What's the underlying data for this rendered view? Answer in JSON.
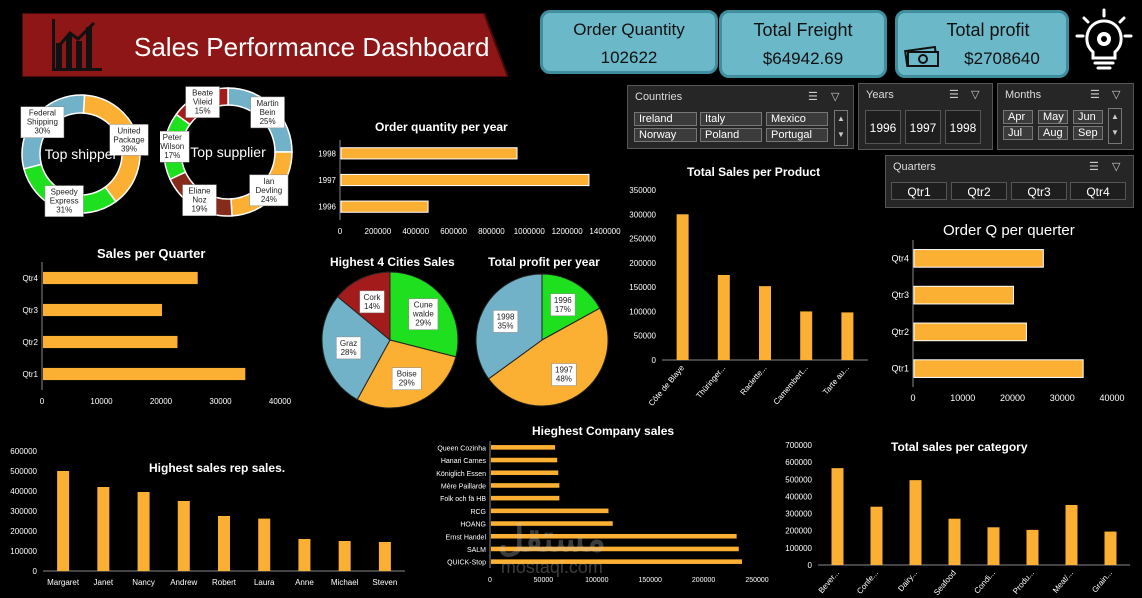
{
  "header": {
    "title": "Sales Performance Dashboard",
    "chart_icon": "bar-chart-icon",
    "idea_icon": "lightbulb-gear-icon"
  },
  "kpis": [
    {
      "title": "Order Quantity",
      "value": "102622"
    },
    {
      "title": "Total Freight",
      "value": "$64942.69"
    },
    {
      "title": "Total profit",
      "value": "$2708640",
      "icon": "money-icon"
    }
  ],
  "slicers": {
    "countries": {
      "title": "Countries",
      "items": [
        "Ireland",
        "Italy",
        "Mexico",
        "Norway",
        "Poland",
        "Portugal"
      ]
    },
    "years": {
      "title": "Years",
      "items": [
        "1996",
        "1997",
        "1998"
      ]
    },
    "months": {
      "title": "Months",
      "items": [
        "Apr",
        "May",
        "Jun",
        "Jul",
        "Aug",
        "Sep"
      ]
    },
    "quarters": {
      "title": "Quarters",
      "items": [
        "Qtr1",
        "Qtr2",
        "Qtr3",
        "Qtr4"
      ]
    }
  },
  "watermark": {
    "arabic": "مستقل",
    "latin": "mostaql.com"
  },
  "chart_data": [
    {
      "id": "shipper",
      "type": "pie",
      "title": "Top shipper",
      "slices": [
        {
          "label": "United Package",
          "pct": 39,
          "color": "#fbb034"
        },
        {
          "label": "Speedy Express",
          "pct": 31,
          "color": "#1fe01f"
        },
        {
          "label": "Federal Shipping",
          "pct": 30,
          "color": "#71b2c9"
        }
      ]
    },
    {
      "id": "supplier",
      "type": "pie",
      "title": "Top supplier",
      "slices": [
        {
          "label": "Martin Bein",
          "pct": 25,
          "color": "#71b2c9"
        },
        {
          "label": "Ian Devling",
          "pct": 24,
          "color": "#fbb034"
        },
        {
          "label": "Eliane Noz",
          "pct": 19,
          "color": "#862b1b"
        },
        {
          "label": "Peter Wilson",
          "pct": 17,
          "color": "#1fe01f"
        },
        {
          "label": "Beate Vileid",
          "pct": 15,
          "color": "#a31b1b"
        }
      ]
    },
    {
      "id": "oqyear",
      "type": "bar",
      "title": "Order quantity per year",
      "categories": [
        "1998",
        "1997",
        "1996"
      ],
      "values": [
        930000,
        1310000,
        460000
      ],
      "xlim": [
        0,
        1400000
      ],
      "ticks": [
        "0",
        "200000",
        "400000",
        "600000",
        "800000",
        "1000000",
        "1200000",
        "1400000"
      ]
    },
    {
      "id": "quarter",
      "type": "bar",
      "title": "Sales per Quarter",
      "categories": [
        "Qtr4",
        "Qtr3",
        "Qtr2",
        "Qtr1"
      ],
      "values": [
        26000,
        20000,
        22600,
        34000
      ],
      "xlim": [
        0,
        40000
      ],
      "ticks": [
        "0",
        "10000",
        "20000",
        "30000",
        "40000"
      ]
    },
    {
      "id": "cities",
      "type": "pie",
      "title": "Highest 4 Cities Sales",
      "slices": [
        {
          "label": "Cune walde",
          "pct": 29,
          "color": "#1fe01f"
        },
        {
          "label": "Boise",
          "pct": 29,
          "color": "#fbb034"
        },
        {
          "label": "Graz",
          "pct": 28,
          "color": "#71b2c9"
        },
        {
          "label": "Cork",
          "pct": 14,
          "color": "#a31b1b"
        }
      ]
    },
    {
      "id": "profit",
      "type": "pie",
      "title": "Total profit per year",
      "slices": [
        {
          "label": "1996",
          "pct": 17,
          "color": "#1fe01f"
        },
        {
          "label": "1997",
          "pct": 48,
          "color": "#fbb034"
        },
        {
          "label": "1998",
          "pct": 35,
          "color": "#71b2c9"
        }
      ]
    },
    {
      "id": "product",
      "type": "bar",
      "title": "Total Sales per Product",
      "categories": [
        "Côte de Blaye",
        "Thüringer...",
        "Raclette...",
        "Camembert...",
        "Tarte au..."
      ],
      "values": [
        300000,
        175000,
        152000,
        100000,
        98000
      ],
      "ylim": [
        0,
        350000
      ],
      "ticks": [
        "0",
        "50000",
        "100000",
        "150000",
        "200000",
        "250000",
        "300000",
        "350000"
      ]
    },
    {
      "id": "oq_quarter",
      "type": "bar",
      "title": "Order Q per querter",
      "categories": [
        "Qtr4",
        "Qtr3",
        "Qtr2",
        "Qtr1"
      ],
      "values": [
        26000,
        20000,
        22600,
        34000
      ],
      "xlim": [
        0,
        40000
      ],
      "ticks": [
        "0",
        "10000",
        "20000",
        "30000",
        "40000"
      ]
    },
    {
      "id": "rep",
      "type": "bar",
      "title": "Highest sales rep sales.",
      "categories": [
        "Margaret",
        "Janet",
        "Nancy",
        "Andrew",
        "Robert",
        "Laura",
        "Anne",
        "Michael",
        "Steven"
      ],
      "values": [
        500000,
        420000,
        395000,
        350000,
        275000,
        262000,
        160000,
        150000,
        145000
      ],
      "ylim": [
        0,
        600000
      ],
      "ticks": [
        "0",
        "100000",
        "200000",
        "300000",
        "400000",
        "500000",
        "600000"
      ]
    },
    {
      "id": "company",
      "type": "bar",
      "title": "Hieghest Company sales",
      "categories": [
        "Queen Cozinha",
        "Hanari Carnes",
        "Königlich Essen",
        "Mère Paillarde",
        "Folk och fä HB",
        "RCG",
        "HOANG",
        "Ernst Handel",
        "SALM",
        "QUICK-Stop"
      ],
      "values": [
        60000,
        62000,
        63000,
        64000,
        64000,
        110000,
        114000,
        230000,
        232000,
        235000
      ],
      "xlim": [
        0,
        250000
      ],
      "ticks": [
        "0",
        "50000",
        "100000",
        "150000",
        "200000",
        "250000"
      ]
    },
    {
      "id": "category",
      "type": "bar",
      "title": "Total sales per category",
      "categories": [
        "Bever...",
        "Confe...",
        "Dairy...",
        "Seafood",
        "Condi...",
        "Produ...",
        "Meat/...",
        "Grain..."
      ],
      "values": [
        565000,
        340000,
        495000,
        270000,
        220000,
        205000,
        350000,
        195000
      ],
      "ylim": [
        0,
        700000
      ],
      "ticks": [
        "0",
        "100000",
        "200000",
        "300000",
        "400000",
        "500000",
        "600000",
        "700000"
      ]
    }
  ]
}
